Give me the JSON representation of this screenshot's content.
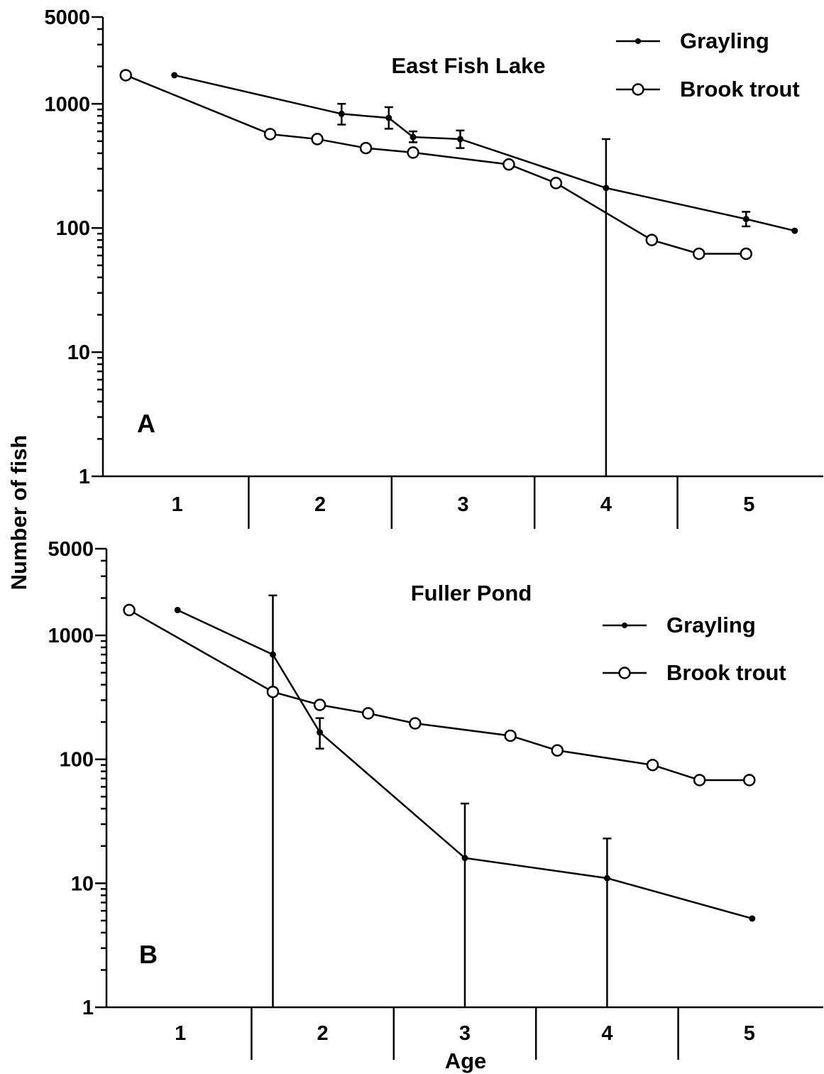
{
  "figure": {
    "ylabel": "Number of fish",
    "xlabel": "Age"
  },
  "chart_data": [
    {
      "type": "line",
      "panel": "A",
      "title": "East Fish Lake",
      "xlabel": "Age",
      "ylabel": "Number of fish",
      "y_scale": "log",
      "ylim": [
        1,
        5000
      ],
      "y_ticks": [
        1,
        10,
        100,
        1000,
        5000
      ],
      "xlim": [
        0.48,
        5.52
      ],
      "x_ticks": [
        1,
        2,
        3,
        4,
        5
      ],
      "legend_position": "top-right",
      "series": [
        {
          "name": "Grayling",
          "marker": "filled-dot",
          "points": [
            {
              "x": 0.98,
              "y": 1700
            },
            {
              "x": 2.15,
              "y": 830,
              "err_low": 680,
              "err_high": 1000
            },
            {
              "x": 2.48,
              "y": 770,
              "err_low": 630,
              "err_high": 940
            },
            {
              "x": 2.65,
              "y": 540,
              "err_low": 490,
              "err_high": 600
            },
            {
              "x": 2.98,
              "y": 520,
              "err_low": 440,
              "err_high": 610
            },
            {
              "x": 4.0,
              "y": 210,
              "err_low": 1,
              "err_high": 520
            },
            {
              "x": 4.98,
              "y": 118,
              "err_low": 103,
              "err_high": 135
            },
            {
              "x": 5.32,
              "y": 95
            }
          ]
        },
        {
          "name": "Brook trout",
          "marker": "open-circle",
          "points": [
            {
              "x": 0.64,
              "y": 1700
            },
            {
              "x": 1.65,
              "y": 570
            },
            {
              "x": 1.98,
              "y": 520
            },
            {
              "x": 2.32,
              "y": 440
            },
            {
              "x": 2.65,
              "y": 405
            },
            {
              "x": 3.32,
              "y": 325
            },
            {
              "x": 3.65,
              "y": 230
            },
            {
              "x": 4.32,
              "y": 80
            },
            {
              "x": 4.65,
              "y": 62
            },
            {
              "x": 4.98,
              "y": 62
            }
          ]
        }
      ]
    },
    {
      "type": "line",
      "panel": "B",
      "title": "Fuller Pond",
      "xlabel": "Age",
      "ylabel": "Number of fish",
      "y_scale": "log",
      "ylim": [
        1,
        5000
      ],
      "y_ticks": [
        1,
        10,
        100,
        1000,
        5000
      ],
      "xlim": [
        0.48,
        5.52
      ],
      "x_ticks": [
        1,
        2,
        3,
        4,
        5
      ],
      "legend_position": "top-right",
      "series": [
        {
          "name": "Grayling",
          "marker": "filled-dot",
          "points": [
            {
              "x": 0.98,
              "y": 1600
            },
            {
              "x": 1.65,
              "y": 700,
              "err_low": 1,
              "err_high": 2100
            },
            {
              "x": 1.98,
              "y": 165,
              "err_low": 122,
              "err_high": 215
            },
            {
              "x": 3.0,
              "y": 16,
              "err_low": 1,
              "err_high": 44
            },
            {
              "x": 4.0,
              "y": 11,
              "err_low": 1,
              "err_high": 23
            },
            {
              "x": 5.02,
              "y": 5.2
            }
          ]
        },
        {
          "name": "Brook trout",
          "marker": "open-circle",
          "points": [
            {
              "x": 0.64,
              "y": 1600
            },
            {
              "x": 1.65,
              "y": 350
            },
            {
              "x": 1.98,
              "y": 275
            },
            {
              "x": 2.32,
              "y": 235
            },
            {
              "x": 2.65,
              "y": 195
            },
            {
              "x": 3.32,
              "y": 155
            },
            {
              "x": 3.65,
              "y": 118
            },
            {
              "x": 4.32,
              "y": 90
            },
            {
              "x": 4.65,
              "y": 68
            },
            {
              "x": 5.0,
              "y": 68
            }
          ]
        }
      ]
    }
  ]
}
